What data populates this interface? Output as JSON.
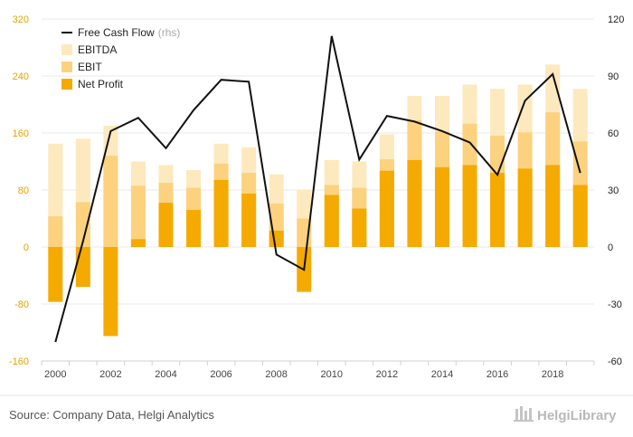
{
  "chart_data": {
    "type": "bar",
    "categories": [
      "2000",
      "2001",
      "2002",
      "2003",
      "2004",
      "2005",
      "2006",
      "2007",
      "2008",
      "2009",
      "2010",
      "2011",
      "2012",
      "2013",
      "2014",
      "2015",
      "2016",
      "2017",
      "2018",
      "2019"
    ],
    "x_tick_labels": [
      "2000",
      "2002",
      "2004",
      "2006",
      "2008",
      "2010",
      "2012",
      "2014",
      "2016",
      "2018"
    ],
    "series": [
      {
        "name": "EBITDA",
        "axis": "left",
        "color": "#fde9be",
        "values": [
          145,
          152,
          170,
          120,
          115,
          108,
          145,
          140,
          102,
          80,
          122,
          120,
          158,
          212,
          212,
          228,
          222,
          228,
          256,
          222
        ]
      },
      {
        "name": "EBIT",
        "axis": "left",
        "color": "#fcd27f",
        "values": [
          43,
          63,
          128,
          86,
          90,
          83,
          117,
          104,
          61,
          40,
          87,
          83,
          123,
          178,
          162,
          173,
          156,
          161,
          189,
          148
        ]
      },
      {
        "name": "Net Profit",
        "axis": "left",
        "color": "#f5aa00",
        "values": [
          -77,
          -56,
          -125,
          11,
          62,
          52,
          94,
          75,
          23,
          -63,
          73,
          54,
          107,
          122,
          112,
          115,
          104,
          110,
          115,
          87
        ]
      },
      {
        "name": "Free Cash Flow",
        "axis": "right",
        "type": "line",
        "color": "#111111",
        "values": [
          -50,
          3,
          61,
          68,
          52,
          72,
          88,
          87,
          -4,
          -12,
          111,
          46,
          69,
          66,
          61,
          55,
          38,
          77,
          91,
          39
        ]
      }
    ],
    "legend": {
      "placement": "top-left",
      "entries": [
        {
          "label": "Free Cash Flow",
          "suffix": "(rhs)",
          "symbol": "line",
          "color": "#111111"
        },
        {
          "label": "EBITDA",
          "symbol": "box",
          "color": "#fde9be"
        },
        {
          "label": "EBIT",
          "symbol": "box",
          "color": "#fcd27f"
        },
        {
          "label": "Net Profit",
          "symbol": "box",
          "color": "#f5aa00"
        }
      ]
    },
    "y_left": {
      "min": -160,
      "max": 320,
      "ticks": [
        320,
        240,
        160,
        80,
        0,
        -80,
        -160
      ],
      "color": "#e0a400"
    },
    "y_right": {
      "min": -60,
      "max": 120,
      "ticks": [
        120,
        90,
        60,
        30,
        0,
        -30,
        -60
      ],
      "color": "#222222"
    },
    "grid": true,
    "title": "",
    "xlabel": "",
    "ylabel": ""
  },
  "footer": {
    "source": "Source: Company Data, Helgi Analytics",
    "brand": "HelgiLibrary"
  }
}
